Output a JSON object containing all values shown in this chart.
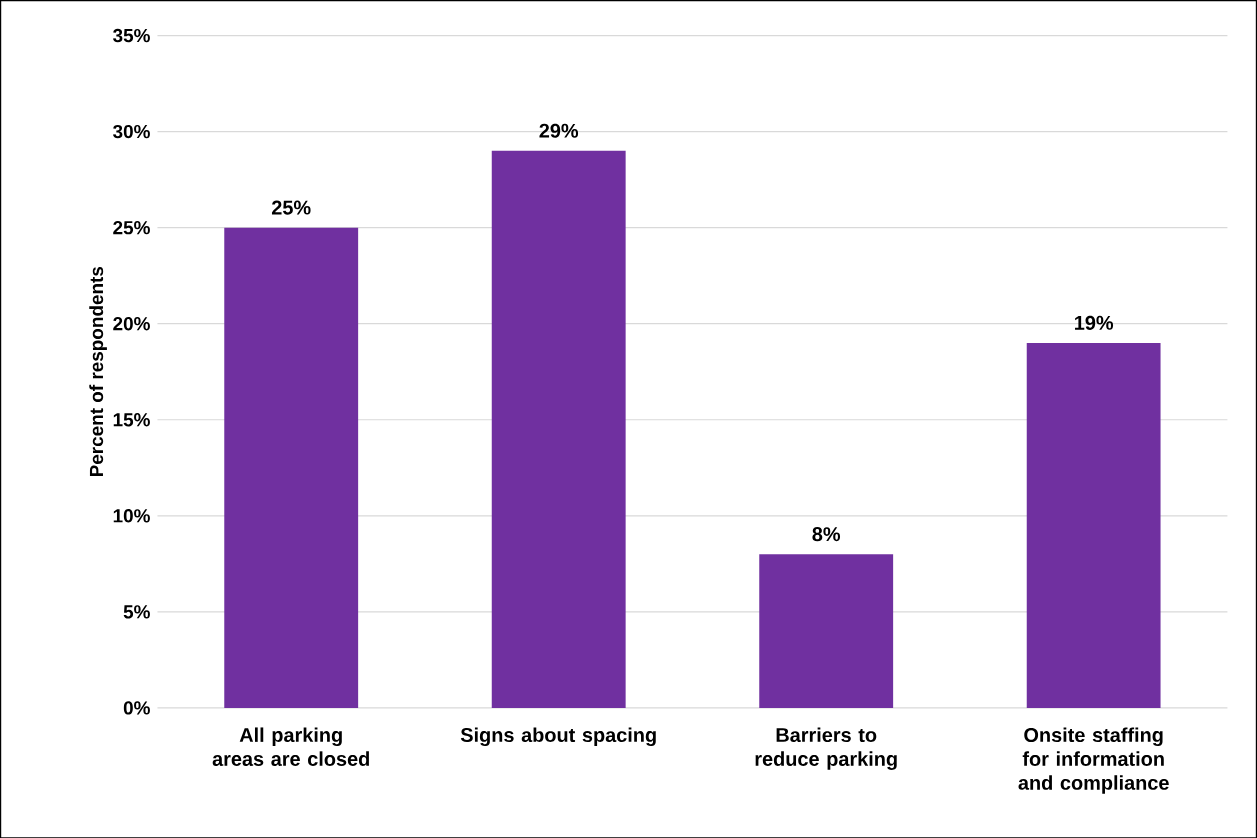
{
  "chart_data": {
    "type": "bar",
    "ylabel": "Percent of respondents",
    "categories": [
      "All parking areas are closed",
      "Signs about spacing",
      "Barriers to reduce parking",
      "Onsite staffing for information and compliance"
    ],
    "values": [
      25,
      29,
      8,
      19
    ],
    "value_labels": [
      "25%",
      "29%",
      "8%",
      "19%"
    ],
    "color": "#7030a0",
    "ylim": [
      0,
      35
    ],
    "yticks": [
      {
        "value": 0,
        "label": "0%"
      },
      {
        "value": 5,
        "label": "5%"
      },
      {
        "value": 10,
        "label": "10%"
      },
      {
        "value": 15,
        "label": "15%"
      },
      {
        "value": 20,
        "label": "20%"
      },
      {
        "value": 25,
        "label": "25%"
      },
      {
        "value": 30,
        "label": "30%"
      },
      {
        "value": 35,
        "label": "35%"
      }
    ],
    "grid": "y"
  }
}
